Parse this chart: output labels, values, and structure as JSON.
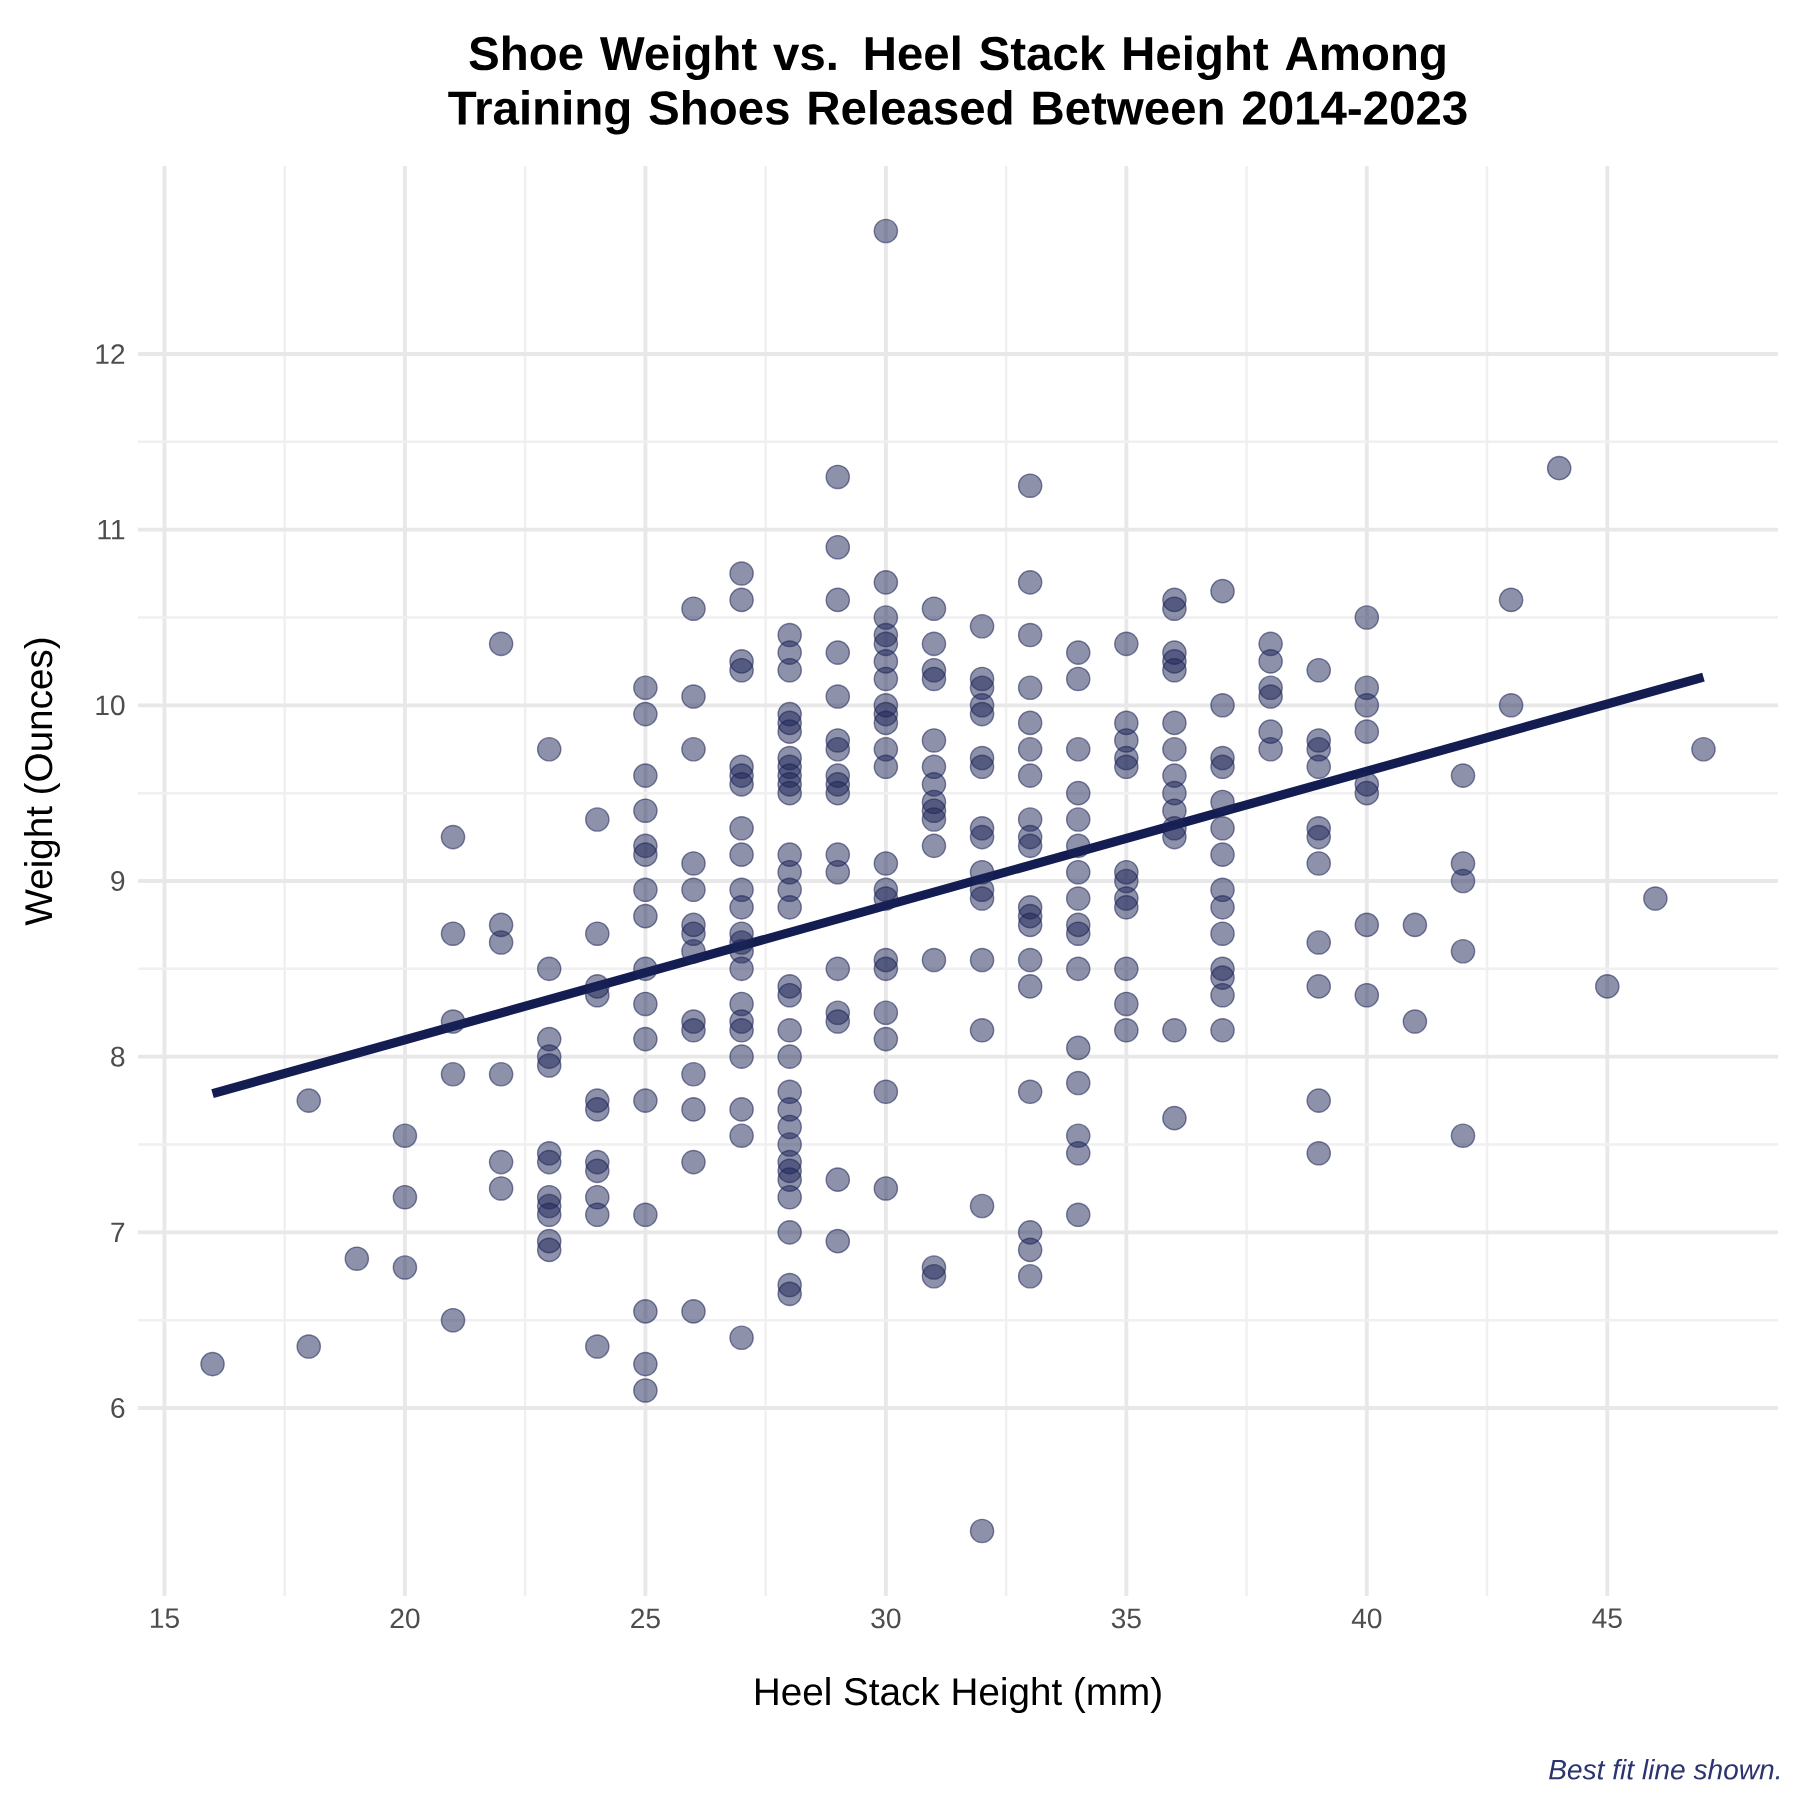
{
  "chart_data": {
    "type": "scatter",
    "title": "Shoe Weight vs. Heel Stack Height Among Training Shoes Released Between 2014-2023",
    "xlabel": "Heel Stack Height (mm)",
    "ylabel": "Weight (Ounces)",
    "annotations": [
      "Best fit line shown."
    ],
    "xlim": [
      14.45,
      48.55
    ],
    "ylim": [
      4.93,
      13.07
    ],
    "xticks": [
      15,
      20,
      25,
      30,
      35,
      40,
      45
    ],
    "yticks": [
      6,
      7,
      8,
      9,
      10,
      11,
      12
    ],
    "grid": true,
    "series": [
      {
        "color": "#1b2356",
        "x": [
          16,
          18,
          18,
          19,
          20,
          20,
          20,
          21,
          21,
          21,
          21,
          21,
          22,
          22,
          22,
          22,
          22,
          22,
          23,
          23,
          23,
          23,
          23,
          23,
          23,
          23,
          23,
          23,
          23,
          23,
          24,
          24,
          24,
          24,
          24,
          24,
          24,
          24,
          24,
          24,
          24,
          25,
          25,
          25,
          25,
          25,
          25,
          25,
          25,
          25,
          25,
          25,
          25,
          25,
          25,
          25,
          25,
          26,
          26,
          26,
          26,
          26,
          26,
          26,
          26,
          26,
          26,
          26,
          26,
          26,
          26,
          27,
          27,
          27,
          27,
          27,
          27,
          27,
          27,
          27,
          27,
          27,
          27,
          27,
          27,
          27,
          27,
          27,
          27,
          27,
          27,
          27,
          27,
          28,
          28,
          28,
          28,
          28,
          28,
          28,
          28,
          28,
          28,
          28,
          28,
          28,
          28,
          28,
          28,
          28,
          28,
          28,
          28,
          28,
          28,
          28,
          28,
          28,
          28,
          28,
          28,
          28,
          28,
          29,
          29,
          29,
          29,
          29,
          29,
          29,
          29,
          29,
          29,
          29,
          29,
          29,
          29,
          29,
          29,
          29,
          30,
          30,
          30,
          30,
          30,
          30,
          30,
          30,
          30,
          30,
          30,
          30,
          30,
          30,
          30,
          30,
          30,
          30,
          30,
          30,
          30,
          31,
          31,
          31,
          31,
          31,
          31,
          31,
          31,
          31,
          31,
          31,
          31,
          31,
          31,
          32,
          32,
          32,
          32,
          32,
          32,
          32,
          32,
          32,
          32,
          32,
          32,
          32,
          32,
          32,
          32,
          33,
          33,
          33,
          33,
          33,
          33,
          33,
          33,
          33,
          33,
          33,
          33,
          33,
          33,
          33,
          33,
          33,
          33,
          33,
          34,
          34,
          34,
          34,
          34,
          34,
          34,
          34,
          34,
          34,
          34,
          34,
          34,
          34,
          34,
          34,
          35,
          35,
          35,
          35,
          35,
          35,
          35,
          35,
          35,
          35,
          35,
          35,
          36,
          36,
          36,
          36,
          36,
          36,
          36,
          36,
          36,
          36,
          36,
          36,
          36,
          36,
          37,
          37,
          37,
          37,
          37,
          37,
          37,
          37,
          37,
          37,
          37,
          37,
          37,
          37,
          38,
          38,
          38,
          38,
          38,
          38,
          39,
          39,
          39,
          39,
          39,
          39,
          39,
          39,
          39,
          39,
          39,
          40,
          40,
          40,
          40,
          40,
          40,
          40,
          40,
          41,
          41,
          42,
          42,
          42,
          42,
          42,
          43,
          43,
          44,
          45,
          46,
          47
        ],
        "values": [
          6.25,
          7.75,
          6.35,
          6.85,
          7.55,
          7.2,
          6.8,
          9.25,
          8.7,
          8.2,
          7.9,
          6.5,
          10.35,
          8.75,
          8.65,
          7.9,
          7.4,
          7.25,
          9.75,
          8.5,
          8.1,
          8.0,
          7.95,
          7.45,
          7.4,
          7.2,
          7.15,
          7.1,
          6.95,
          6.9,
          9.35,
          8.7,
          8.4,
          8.35,
          7.75,
          7.7,
          7.4,
          7.35,
          7.2,
          7.1,
          6.35,
          10.1,
          9.95,
          9.6,
          9.4,
          9.2,
          9.15,
          8.95,
          8.8,
          8.5,
          8.3,
          8.1,
          7.75,
          7.1,
          6.55,
          6.25,
          6.1,
          10.55,
          10.05,
          9.75,
          9.1,
          8.95,
          8.75,
          8.7,
          8.6,
          8.2,
          8.15,
          7.9,
          7.7,
          7.4,
          6.55,
          10.75,
          10.6,
          10.25,
          10.2,
          9.65,
          9.6,
          9.55,
          9.3,
          9.15,
          8.95,
          8.85,
          8.7,
          8.65,
          8.6,
          8.5,
          8.3,
          8.2,
          8.15,
          8.0,
          7.7,
          7.55,
          6.4,
          10.4,
          10.3,
          10.2,
          9.95,
          9.9,
          9.85,
          9.7,
          9.65,
          9.6,
          9.55,
          9.5,
          9.15,
          9.05,
          8.95,
          8.85,
          8.4,
          8.35,
          8.15,
          8.0,
          7.8,
          7.7,
          7.6,
          7.5,
          7.4,
          7.35,
          7.3,
          7.2,
          7.0,
          6.7,
          6.65,
          11.3,
          10.9,
          10.6,
          10.3,
          10.05,
          9.8,
          9.75,
          9.6,
          9.55,
          9.5,
          9.15,
          9.05,
          8.5,
          8.25,
          8.2,
          7.3,
          6.95,
          12.7,
          10.7,
          10.5,
          10.4,
          10.35,
          10.25,
          10.15,
          10.0,
          9.95,
          9.9,
          9.75,
          9.65,
          9.1,
          8.95,
          8.9,
          8.55,
          8.5,
          8.25,
          8.1,
          7.8,
          7.25,
          10.55,
          10.35,
          10.2,
          10.15,
          9.8,
          9.65,
          9.55,
          9.45,
          9.4,
          9.35,
          9.2,
          8.55,
          6.8,
          6.75,
          10.45,
          10.15,
          10.1,
          10.0,
          9.95,
          9.7,
          9.65,
          9.3,
          9.25,
          9.05,
          8.95,
          8.9,
          8.55,
          8.15,
          7.15,
          5.3,
          11.25,
          10.7,
          10.4,
          10.1,
          9.9,
          9.75,
          9.6,
          9.35,
          9.25,
          9.2,
          8.85,
          8.8,
          8.75,
          8.55,
          8.4,
          7.8,
          7.0,
          6.9,
          6.75,
          10.3,
          10.15,
          9.75,
          9.5,
          9.35,
          9.2,
          9.05,
          8.9,
          8.75,
          8.7,
          8.5,
          8.05,
          7.85,
          7.55,
          7.45,
          7.1,
          10.35,
          9.9,
          9.8,
          9.7,
          9.65,
          9.05,
          9.0,
          8.9,
          8.85,
          8.5,
          8.3,
          8.15,
          10.6,
          10.55,
          10.3,
          10.25,
          10.2,
          9.9,
          9.75,
          9.6,
          9.5,
          9.4,
          9.3,
          9.25,
          8.15,
          7.65,
          10.65,
          10.0,
          9.7,
          9.65,
          9.45,
          9.3,
          9.15,
          8.95,
          8.85,
          8.7,
          8.5,
          8.45,
          8.35,
          8.15,
          10.35,
          10.25,
          10.1,
          10.05,
          9.85,
          9.75,
          10.2,
          9.8,
          9.75,
          9.65,
          9.3,
          9.25,
          9.1,
          8.65,
          8.4,
          7.75,
          7.45,
          10.5,
          10.1,
          10.0,
          9.85,
          9.55,
          9.5,
          8.75,
          8.35,
          8.75,
          8.2,
          9.6,
          9.1,
          9.0,
          8.6,
          7.55,
          10.6,
          10.0,
          11.35,
          8.4,
          8.9,
          9.75
        ]
      },
      {
        "type": "line",
        "color": "#131d52",
        "x": [
          16,
          47
        ],
        "values": [
          7.79,
          10.16
        ]
      }
    ]
  }
}
